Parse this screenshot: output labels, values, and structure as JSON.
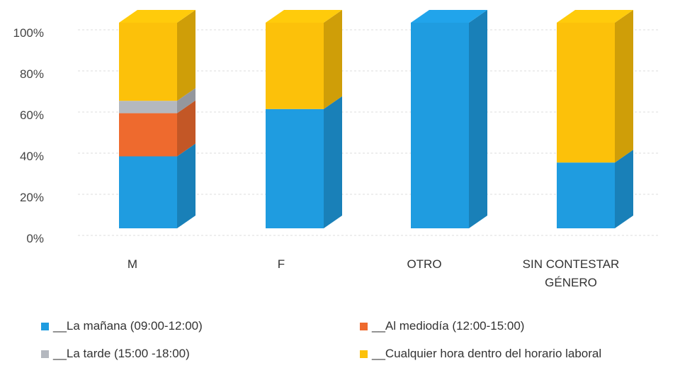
{
  "chart_data": {
    "type": "bar",
    "stacked": true,
    "three_d": true,
    "categories": [
      "M",
      "F",
      "OTRO",
      "SIN CONTESTAR GÉNERO"
    ],
    "category_lines": [
      [
        "M"
      ],
      [
        "F"
      ],
      [
        "OTRO"
      ],
      [
        "SIN CONTESTAR",
        "GÉNERO"
      ]
    ],
    "series": [
      {
        "name": "__La mañana (09:00-12:00)",
        "color": "#1f9ce0",
        "values": [
          35,
          58,
          100,
          32
        ]
      },
      {
        "name": "__Al mediodía (12:00-15:00)",
        "color": "#ee6a2e",
        "values": [
          21,
          0,
          0,
          0
        ]
      },
      {
        "name": "__La tarde (15:00 -18:00)",
        "color": "#b4b8bf",
        "values": [
          6,
          0,
          0,
          0
        ]
      },
      {
        "name": "__Cualquier hora dentro del horario laboral",
        "color": "#fcc10a",
        "values": [
          38,
          42,
          0,
          68
        ]
      }
    ],
    "y_ticks": [
      "0%",
      "20%",
      "40%",
      "60%",
      "80%",
      "100%"
    ],
    "ylim": [
      0,
      100
    ],
    "grid": true,
    "legend_position": "bottom"
  }
}
